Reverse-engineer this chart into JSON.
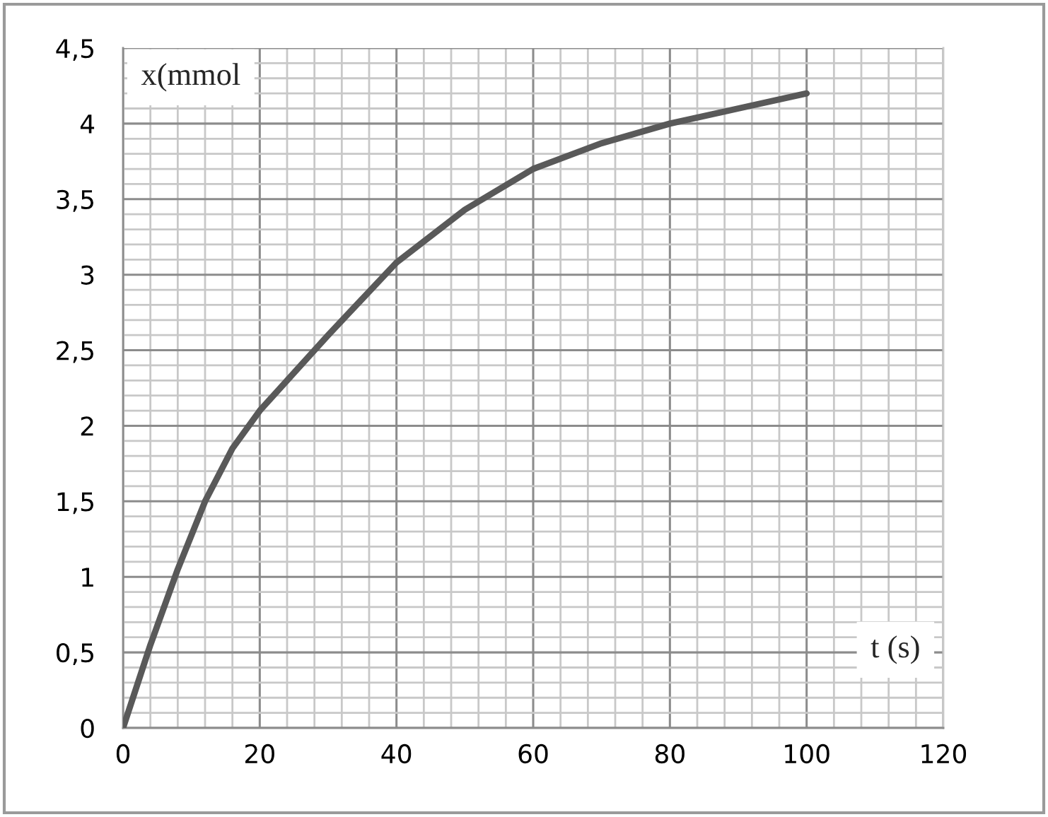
{
  "chart_data": {
    "type": "line",
    "xlabel": "t (s)",
    "ylabel": "x(mmol",
    "x": [
      0,
      4,
      8,
      12,
      16,
      20,
      30,
      40,
      50,
      60,
      70,
      80,
      90,
      100
    ],
    "series": [
      {
        "color": "#595959",
        "values": [
          0,
          0.55,
          1.05,
          1.5,
          1.85,
          2.1,
          2.6,
          3.08,
          3.43,
          3.7,
          3.87,
          4.0,
          4.1,
          4.2
        ]
      }
    ],
    "xlim": [
      0,
      120
    ],
    "xticks": [
      0,
      20,
      40,
      60,
      80,
      100,
      120
    ],
    "ylim": [
      0,
      4.5
    ],
    "yticks": [
      0,
      {
        "value": 0.5,
        "label": "0,5"
      },
      1,
      {
        "value": 1.5,
        "label": "1,5"
      },
      2,
      {
        "value": 2.5,
        "label": "2,5"
      },
      3,
      {
        "value": 3.5,
        "label": "3,5"
      },
      4,
      {
        "value": 4.5,
        "label": "4,5"
      }
    ],
    "grid": true,
    "marker": "none",
    "line_style": "solid",
    "legend": false
  }
}
